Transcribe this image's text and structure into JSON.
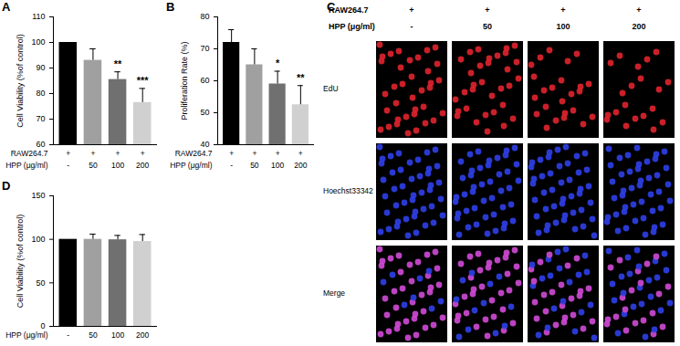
{
  "chart_data": [
    {
      "type": "bar",
      "panel": "A",
      "y_label": "Cell Viability (%of control)",
      "categories": [
        "-",
        "50",
        "100",
        "200"
      ],
      "x_label": "HPP (μg/ml)",
      "extra_rows": [
        {
          "label": "RAW264.7",
          "values": [
            "+",
            "+",
            "+",
            "+"
          ]
        }
      ],
      "values": [
        100,
        93,
        85.5,
        76.5
      ],
      "errors": [
        null,
        4.5,
        3,
        5.5
      ],
      "significance": [
        null,
        null,
        "**",
        "***"
      ],
      "colors": [
        "#000000",
        "#a0a0a0",
        "#707070",
        "#d0d0d0"
      ],
      "ylim": [
        60,
        110
      ],
      "yticks": [
        60,
        70,
        80,
        90,
        100,
        110
      ]
    },
    {
      "type": "bar",
      "panel": "B",
      "y_label": "Proliferation Rate (%)",
      "categories": [
        "-",
        "50",
        "100",
        "200"
      ],
      "x_label": "HPP (μg/ml)",
      "extra_rows": [
        {
          "label": "RAW264.7",
          "values": [
            "+",
            "+",
            "+",
            "+"
          ]
        }
      ],
      "values": [
        72,
        65,
        59,
        52.5
      ],
      "errors": [
        4,
        5,
        4,
        6
      ],
      "significance": [
        null,
        null,
        "*",
        "**"
      ],
      "colors": [
        "#000000",
        "#a0a0a0",
        "#707070",
        "#d0d0d0"
      ],
      "ylim": [
        40,
        80
      ],
      "yticks": [
        40,
        50,
        60,
        70,
        80
      ]
    },
    {
      "type": "bar",
      "panel": "D",
      "y_label": "Cell Viability (%of control)",
      "categories": [
        "-",
        "50",
        "100",
        "200"
      ],
      "x_label": "HPP (μg/ml)",
      "extra_rows": [],
      "values": [
        100,
        100,
        99.5,
        97.5
      ],
      "errors": [
        null,
        6,
        5,
        8
      ],
      "significance": [
        null,
        null,
        null,
        null
      ],
      "colors": [
        "#000000",
        "#a0a0a0",
        "#707070",
        "#d0d0d0"
      ],
      "ylim": [
        0,
        150
      ],
      "yticks": [
        0,
        50,
        100,
        150
      ]
    }
  ],
  "image_panel": {
    "panel": "C",
    "header_rows": [
      {
        "label": "RAW264.7",
        "values": [
          "+",
          "+",
          "+",
          "+"
        ]
      },
      {
        "label": "HPP (μg/ml)",
        "values": [
          "-",
          "50",
          "100",
          "200"
        ]
      }
    ],
    "row_labels": [
      "EdU",
      "Hoechst33342",
      "Merge"
    ]
  }
}
